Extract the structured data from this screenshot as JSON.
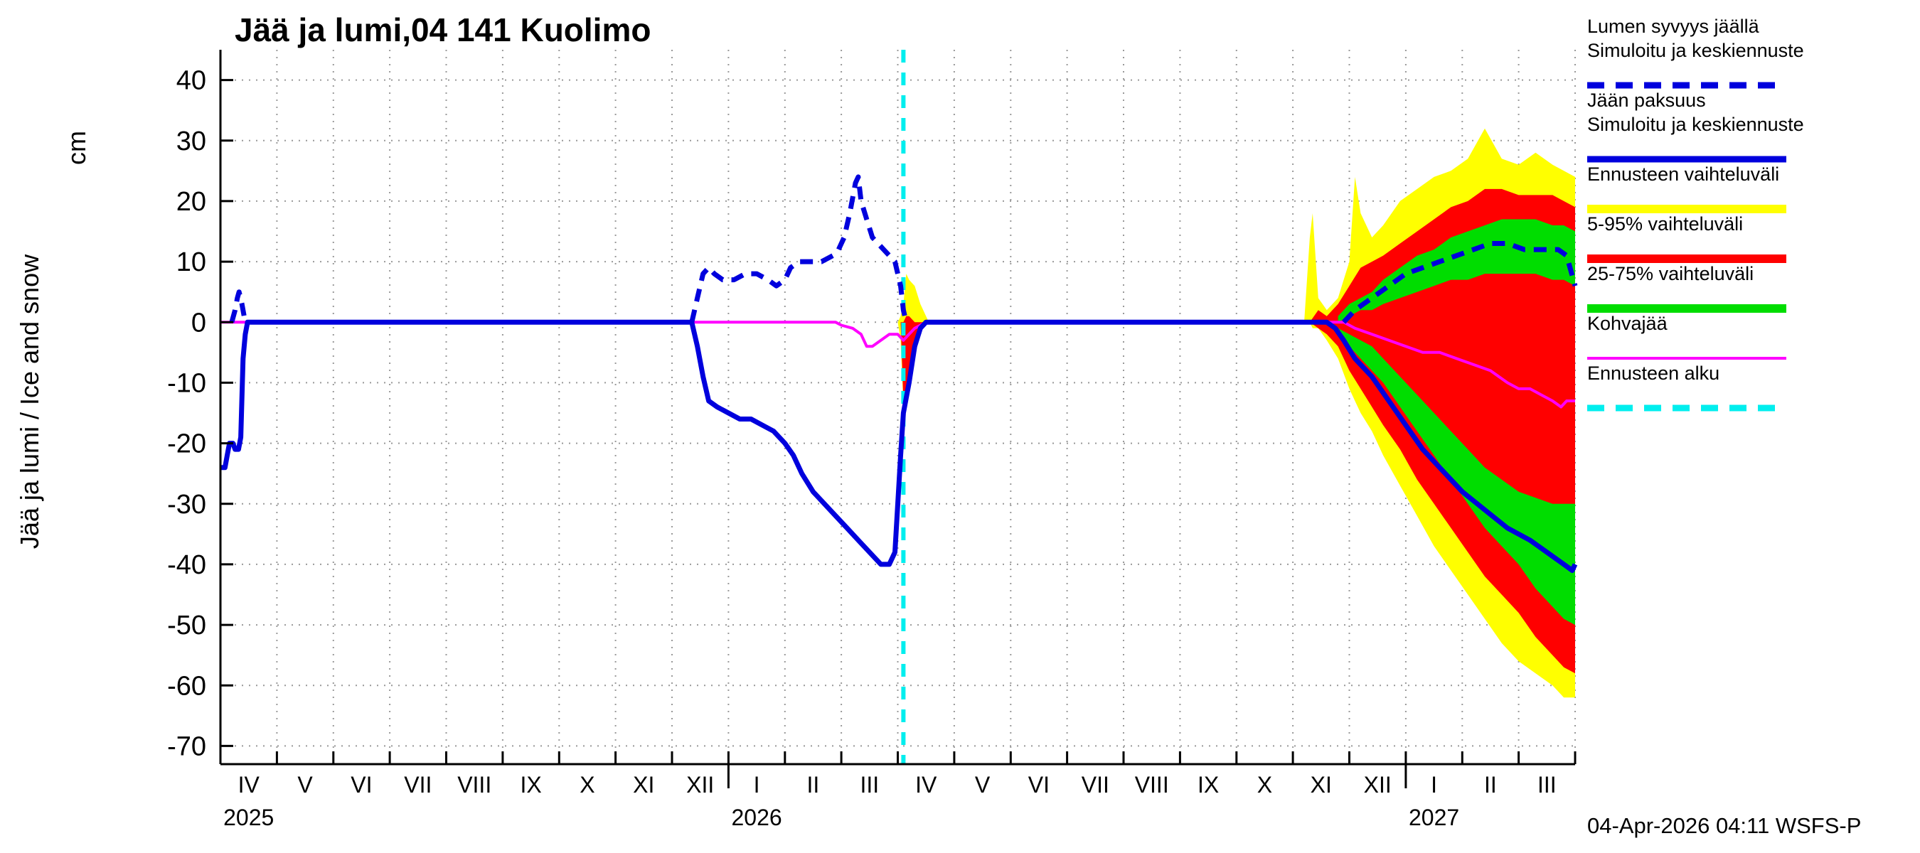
{
  "title": "Jää ja lumi,04 141 Kuolimo",
  "ylabel": "Jää ja lumi / Ice and snow",
  "y_unit": "cm",
  "timestamp": "04-Apr-2026 04:11 WSFS-P",
  "colors": {
    "simulated_blue": "#0000dd",
    "forecast_range_yellow": "#ffff00",
    "p5_95_red": "#ff0000",
    "p25_75_green": "#00dd00",
    "kohvajaa_magenta": "#ff00ff",
    "forecast_start_cyan": "#00eeee",
    "grid": "#999999",
    "axis": "#000000"
  },
  "legend": [
    {
      "lines": [
        "Lumen syvyys jäällä",
        "Simuloitu ja keskiennuste"
      ],
      "swatch": {
        "color": "#0000dd",
        "width": 9,
        "dash": "24 16"
      }
    },
    {
      "lines": [
        "Jään paksuus",
        "Simuloitu ja keskiennuste"
      ],
      "swatch": {
        "color": "#0000dd",
        "width": 9,
        "dash": ""
      }
    },
    {
      "lines": [
        "Ennusteen vaihteluväli"
      ],
      "swatch": {
        "color": "#ffff00",
        "width": 12,
        "dash": ""
      }
    },
    {
      "lines": [
        "5-95% vaihteluväli"
      ],
      "swatch": {
        "color": "#ff0000",
        "width": 12,
        "dash": ""
      }
    },
    {
      "lines": [
        "25-75% vaihteluväli"
      ],
      "swatch": {
        "color": "#00dd00",
        "width": 12,
        "dash": ""
      }
    },
    {
      "lines": [
        "Kohvajää"
      ],
      "swatch": {
        "color": "#ff00ff",
        "width": 4,
        "dash": ""
      }
    },
    {
      "lines": [
        "Ennusteen alku"
      ],
      "swatch": {
        "color": "#00eeee",
        "width": 9,
        "dash": "24 16"
      }
    }
  ],
  "chart_data": {
    "type": "line",
    "title": "Jää ja lumi,04 141 Kuolimo",
    "ylabel": "Jää ja lumi / Ice and snow (cm)",
    "xlabel": "",
    "grid": true,
    "legend_position": "right-outside",
    "ylim": [
      -73,
      45
    ],
    "xlim": [
      0,
      24
    ],
    "yticks": [
      40,
      30,
      20,
      10,
      0,
      -10,
      -20,
      -30,
      -40,
      -50,
      -60,
      -70
    ],
    "x_unit": "months from April 2025 (1 unit = 1 month)",
    "month_labels": [
      "IV",
      "V",
      "VI",
      "VII",
      "VIII",
      "IX",
      "X",
      "XI",
      "XII",
      "I",
      "II",
      "III",
      "IV",
      "V",
      "VI",
      "VII",
      "VIII",
      "IX",
      "X",
      "XI",
      "XII",
      "I",
      "II",
      "III"
    ],
    "year_labels": [
      {
        "text": "2025",
        "month_index": 0
      },
      {
        "text": "2026",
        "month_index": 9
      },
      {
        "text": "2027",
        "month_index": 21
      }
    ],
    "year_boundary_ticks": [
      9,
      21
    ],
    "forecast_start_x": 12.1,
    "bands": [
      {
        "name": "forecast-range-winter-2027",
        "color": "#ffff00",
        "points": [
          [
            19.2,
            0,
            0
          ],
          [
            19.3,
            0,
            14
          ],
          [
            19.35,
            -1,
            18
          ],
          [
            19.45,
            -1,
            4
          ],
          [
            19.6,
            -3,
            2
          ],
          [
            19.8,
            -6,
            4
          ],
          [
            20.0,
            -11,
            10
          ],
          [
            20.1,
            -13,
            24
          ],
          [
            20.2,
            -15,
            18
          ],
          [
            20.4,
            -18,
            14
          ],
          [
            20.6,
            -22,
            16
          ],
          [
            20.9,
            -27,
            20
          ],
          [
            21.2,
            -32,
            22
          ],
          [
            21.5,
            -37,
            24
          ],
          [
            21.8,
            -41,
            25
          ],
          [
            22.1,
            -45,
            27
          ],
          [
            22.4,
            -49,
            32
          ],
          [
            22.7,
            -53,
            27
          ],
          [
            23.0,
            -56,
            26
          ],
          [
            23.3,
            -58,
            28
          ],
          [
            23.6,
            -60,
            26
          ],
          [
            23.8,
            -62,
            25
          ],
          [
            24.0,
            -62,
            24
          ]
        ]
      },
      {
        "name": "forecast-range-apr-2026",
        "color": "#ffff00",
        "points": [
          [
            12.0,
            0,
            0
          ],
          [
            12.05,
            -3,
            1
          ],
          [
            12.1,
            -14,
            3
          ],
          [
            12.15,
            -12,
            8
          ],
          [
            12.2,
            -10,
            7
          ],
          [
            12.3,
            -5,
            6
          ],
          [
            12.4,
            -2,
            3
          ],
          [
            12.5,
            0,
            1
          ],
          [
            12.55,
            0,
            0
          ]
        ]
      },
      {
        "name": "p5-95-winter-2027",
        "color": "#ff0000",
        "points": [
          [
            19.3,
            0,
            0
          ],
          [
            19.45,
            -1,
            2
          ],
          [
            19.6,
            -2,
            1
          ],
          [
            19.8,
            -4,
            3
          ],
          [
            20.0,
            -8,
            6
          ],
          [
            20.2,
            -11,
            9
          ],
          [
            20.4,
            -14,
            10
          ],
          [
            20.6,
            -17,
            11
          ],
          [
            20.9,
            -21,
            13
          ],
          [
            21.2,
            -26,
            15
          ],
          [
            21.5,
            -30,
            17
          ],
          [
            21.8,
            -34,
            19
          ],
          [
            22.1,
            -38,
            20
          ],
          [
            22.4,
            -42,
            22
          ],
          [
            22.7,
            -45,
            22
          ],
          [
            23.0,
            -48,
            21
          ],
          [
            23.3,
            -52,
            21
          ],
          [
            23.6,
            -55,
            21
          ],
          [
            23.8,
            -57,
            20
          ],
          [
            24.0,
            -58,
            19
          ]
        ]
      },
      {
        "name": "p5-95-apr-2026",
        "color": "#ff0000",
        "points": [
          [
            12.05,
            0,
            0
          ],
          [
            12.1,
            -13,
            0
          ],
          [
            12.15,
            -11,
            1
          ],
          [
            12.2,
            -9,
            1
          ],
          [
            12.3,
            -4,
            0
          ],
          [
            12.4,
            -1,
            0
          ],
          [
            12.45,
            0,
            0
          ]
        ]
      },
      {
        "name": "p25-75-snow-winter-2027",
        "color": "#00dd00",
        "points": [
          [
            19.8,
            0,
            1
          ],
          [
            20.0,
            1,
            3
          ],
          [
            20.2,
            2,
            4
          ],
          [
            20.4,
            2,
            5
          ],
          [
            20.6,
            3,
            7
          ],
          [
            20.9,
            4,
            9
          ],
          [
            21.2,
            5,
            11
          ],
          [
            21.5,
            6,
            12
          ],
          [
            21.8,
            7,
            14
          ],
          [
            22.1,
            7,
            15
          ],
          [
            22.4,
            8,
            16
          ],
          [
            22.7,
            8,
            17
          ],
          [
            23.0,
            8,
            17
          ],
          [
            23.3,
            8,
            17
          ],
          [
            23.6,
            7,
            16
          ],
          [
            23.8,
            7,
            16
          ],
          [
            24.0,
            6,
            15
          ]
        ]
      },
      {
        "name": "p25-75-ice-winter-2027",
        "color": "#00dd00",
        "points": [
          [
            19.8,
            -2,
            -1
          ],
          [
            20.0,
            -4,
            -2
          ],
          [
            20.2,
            -6,
            -3
          ],
          [
            20.4,
            -8,
            -4
          ],
          [
            20.6,
            -10,
            -6
          ],
          [
            20.9,
            -14,
            -9
          ],
          [
            21.2,
            -18,
            -12
          ],
          [
            21.5,
            -22,
            -15
          ],
          [
            21.8,
            -26,
            -18
          ],
          [
            22.1,
            -30,
            -21
          ],
          [
            22.4,
            -34,
            -24
          ],
          [
            22.7,
            -37,
            -26
          ],
          [
            23.0,
            -40,
            -28
          ],
          [
            23.3,
            -44,
            -29
          ],
          [
            23.6,
            -47,
            -30
          ],
          [
            23.8,
            -49,
            -30
          ],
          [
            24.0,
            -50,
            -30
          ]
        ]
      }
    ],
    "lines": [
      {
        "name": "kohvajaa",
        "label": "Kohvajää",
        "color": "#ff00ff",
        "width": 4,
        "dash": "",
        "points": [
          [
            0.0,
            0
          ],
          [
            10.9,
            0
          ],
          [
            11.0,
            -0.5
          ],
          [
            11.2,
            -1
          ],
          [
            11.35,
            -2
          ],
          [
            11.45,
            -4
          ],
          [
            11.55,
            -4
          ],
          [
            11.7,
            -3
          ],
          [
            11.85,
            -2
          ],
          [
            12.0,
            -2
          ],
          [
            12.1,
            -3
          ],
          [
            12.3,
            -1
          ],
          [
            12.5,
            0
          ],
          [
            19.9,
            0
          ],
          [
            20.1,
            -1
          ],
          [
            20.4,
            -2
          ],
          [
            20.7,
            -3
          ],
          [
            21.0,
            -4
          ],
          [
            21.3,
            -5
          ],
          [
            21.6,
            -5
          ],
          [
            21.9,
            -6
          ],
          [
            22.2,
            -7
          ],
          [
            22.5,
            -8
          ],
          [
            22.8,
            -10
          ],
          [
            23.0,
            -11
          ],
          [
            23.2,
            -11
          ],
          [
            23.4,
            -12
          ],
          [
            23.6,
            -13
          ],
          [
            23.75,
            -14
          ],
          [
            23.85,
            -13
          ],
          [
            24.0,
            -13
          ]
        ]
      },
      {
        "name": "snow-depth-spring-2025",
        "label": "Lumen syvyys jäällä",
        "color": "#0000dd",
        "width": 7,
        "dash": "18 12",
        "points": [
          [
            0.2,
            0
          ],
          [
            0.26,
            2
          ],
          [
            0.3,
            4
          ],
          [
            0.33,
            5
          ],
          [
            0.38,
            3
          ],
          [
            0.42,
            1
          ],
          [
            0.46,
            0
          ]
        ]
      },
      {
        "name": "snow-depth-winter-2026",
        "label": "Lumen syvyys jäällä",
        "color": "#0000dd",
        "width": 7,
        "dash": "18 12",
        "points": [
          [
            8.35,
            0
          ],
          [
            8.45,
            4
          ],
          [
            8.55,
            8
          ],
          [
            8.65,
            9
          ],
          [
            8.75,
            8
          ],
          [
            8.9,
            7
          ],
          [
            9.1,
            7
          ],
          [
            9.3,
            8
          ],
          [
            9.5,
            8
          ],
          [
            9.7,
            7
          ],
          [
            9.85,
            6
          ],
          [
            10.0,
            7
          ],
          [
            10.1,
            9
          ],
          [
            10.25,
            10
          ],
          [
            10.45,
            10
          ],
          [
            10.65,
            10
          ],
          [
            10.85,
            11
          ],
          [
            10.95,
            12
          ],
          [
            11.05,
            14
          ],
          [
            11.15,
            18
          ],
          [
            11.25,
            23
          ],
          [
            11.3,
            24
          ],
          [
            11.35,
            20
          ],
          [
            11.45,
            17
          ],
          [
            11.55,
            14
          ],
          [
            11.65,
            13
          ],
          [
            11.75,
            12
          ],
          [
            11.85,
            11
          ],
          [
            11.95,
            10
          ],
          [
            12.05,
            6
          ],
          [
            12.1,
            2
          ],
          [
            12.15,
            0
          ]
        ]
      },
      {
        "name": "snow-depth-forecast-2027",
        "label": "Lumen syvyys jäällä",
        "color": "#0000dd",
        "width": 7,
        "dash": "18 12",
        "points": [
          [
            19.9,
            0
          ],
          [
            20.1,
            2
          ],
          [
            20.4,
            4
          ],
          [
            20.7,
            6
          ],
          [
            21.0,
            8
          ],
          [
            21.3,
            9
          ],
          [
            21.6,
            10
          ],
          [
            21.9,
            11
          ],
          [
            22.2,
            12
          ],
          [
            22.5,
            13
          ],
          [
            22.8,
            13
          ],
          [
            23.1,
            12
          ],
          [
            23.4,
            12
          ],
          [
            23.7,
            12
          ],
          [
            23.85,
            11
          ],
          [
            24.0,
            6
          ]
        ]
      },
      {
        "name": "ice-thickness",
        "label": "Jään paksuus",
        "color": "#0000dd",
        "width": 7,
        "dash": "",
        "points": [
          [
            0.0,
            -24
          ],
          [
            0.08,
            -24
          ],
          [
            0.12,
            -22
          ],
          [
            0.16,
            -20
          ],
          [
            0.22,
            -20
          ],
          [
            0.26,
            -21
          ],
          [
            0.32,
            -21
          ],
          [
            0.36,
            -19
          ],
          [
            0.4,
            -6
          ],
          [
            0.44,
            -2
          ],
          [
            0.48,
            0
          ],
          [
            8.35,
            0
          ],
          [
            8.45,
            -4
          ],
          [
            8.55,
            -9
          ],
          [
            8.65,
            -13
          ],
          [
            8.8,
            -14
          ],
          [
            9.0,
            -15
          ],
          [
            9.2,
            -16
          ],
          [
            9.4,
            -16
          ],
          [
            9.6,
            -17
          ],
          [
            9.8,
            -18
          ],
          [
            10.0,
            -20
          ],
          [
            10.15,
            -22
          ],
          [
            10.3,
            -25
          ],
          [
            10.5,
            -28
          ],
          [
            10.7,
            -30
          ],
          [
            10.9,
            -32
          ],
          [
            11.1,
            -34
          ],
          [
            11.3,
            -36
          ],
          [
            11.5,
            -38
          ],
          [
            11.7,
            -40
          ],
          [
            11.85,
            -40
          ],
          [
            11.95,
            -38
          ],
          [
            12.0,
            -30
          ],
          [
            12.05,
            -22
          ],
          [
            12.1,
            -15
          ],
          [
            12.2,
            -10
          ],
          [
            12.3,
            -4
          ],
          [
            12.4,
            -1
          ],
          [
            12.5,
            0
          ],
          [
            19.6,
            0
          ],
          [
            19.75,
            -1
          ],
          [
            19.9,
            -3
          ],
          [
            20.1,
            -6
          ],
          [
            20.4,
            -9
          ],
          [
            20.7,
            -13
          ],
          [
            21.0,
            -17
          ],
          [
            21.3,
            -21
          ],
          [
            21.6,
            -24
          ],
          [
            22.0,
            -28
          ],
          [
            22.4,
            -31
          ],
          [
            22.8,
            -34
          ],
          [
            23.2,
            -36
          ],
          [
            23.5,
            -38
          ],
          [
            23.8,
            -40
          ],
          [
            23.95,
            -41
          ],
          [
            24.0,
            -40
          ]
        ]
      }
    ]
  }
}
